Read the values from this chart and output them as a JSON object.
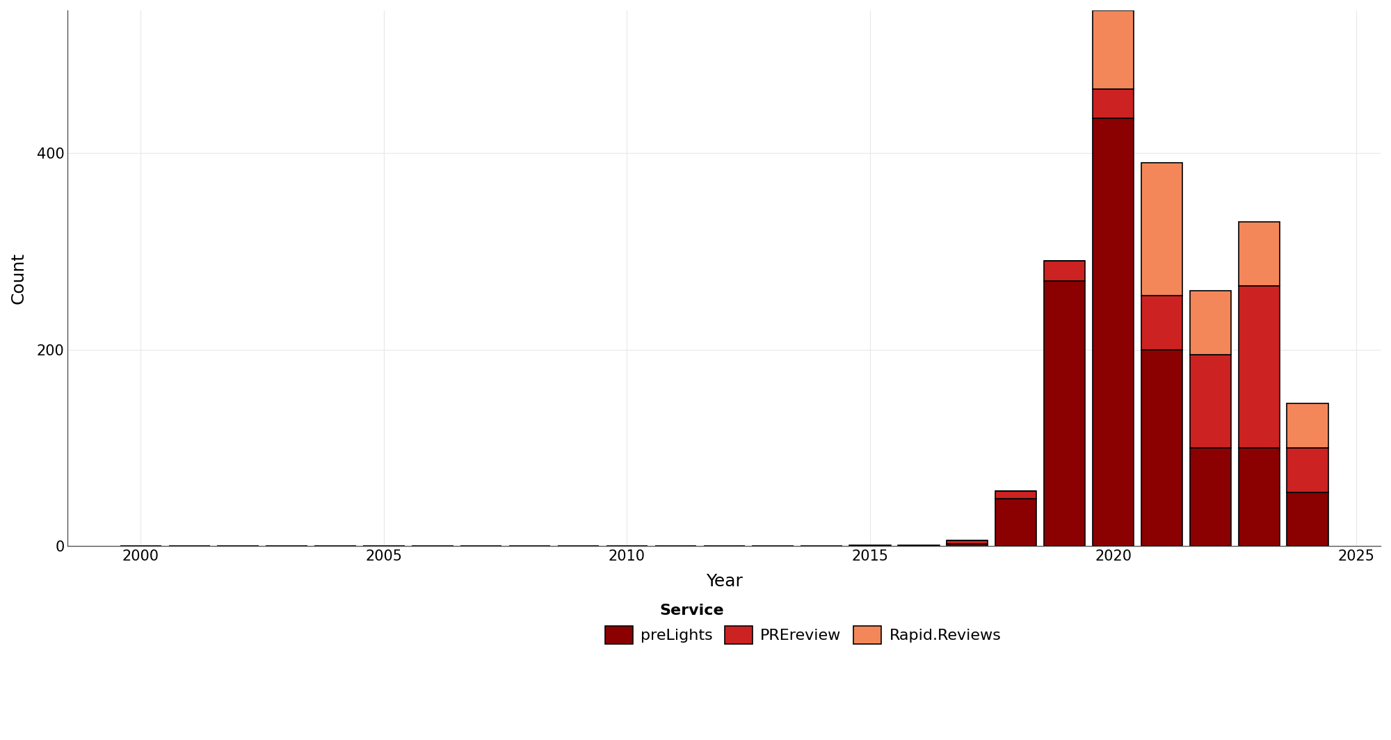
{
  "years": [
    2000,
    2001,
    2002,
    2003,
    2004,
    2005,
    2006,
    2007,
    2008,
    2009,
    2010,
    2011,
    2012,
    2013,
    2014,
    2015,
    2016,
    2017,
    2018,
    2019,
    2020,
    2021,
    2022,
    2023,
    2024
  ],
  "preLights": [
    0,
    0,
    0,
    0,
    0,
    0,
    0,
    0,
    0,
    0,
    0,
    0,
    0,
    0,
    0,
    0,
    0,
    2,
    48,
    270,
    435,
    200,
    100,
    100,
    55
  ],
  "PREreview": [
    0,
    0,
    0,
    0,
    0,
    0,
    0,
    0,
    0,
    0,
    0,
    0,
    0,
    0,
    0,
    1,
    1,
    4,
    8,
    20,
    30,
    55,
    95,
    165,
    45
  ],
  "Rapid_Reviews": [
    0,
    0,
    0,
    0,
    0,
    0,
    0,
    0,
    0,
    0,
    0,
    0,
    0,
    0,
    0,
    0,
    0,
    0,
    0,
    0,
    80,
    135,
    65,
    65,
    45
  ],
  "color_preLights": "#8B0000",
  "color_PREreview": "#CC2222",
  "color_Rapid_Reviews": "#F4875A",
  "bar_edgecolor": "black",
  "bar_linewidth": 1.2,
  "background_color": "#FFFFFF",
  "grid_color": "#E8E8E8",
  "xlabel": "Year",
  "ylabel": "Count",
  "xlim_left": 1998.5,
  "xlim_right": 2025.5,
  "ylim": [
    0,
    545
  ],
  "yticks": [
    0,
    200,
    400
  ],
  "xticks": [
    2000,
    2005,
    2010,
    2015,
    2020,
    2025
  ],
  "legend_labels": [
    "preLights",
    "PREreview",
    "Rapid.Reviews"
  ],
  "legend_title": "Service",
  "bar_width": 0.85
}
